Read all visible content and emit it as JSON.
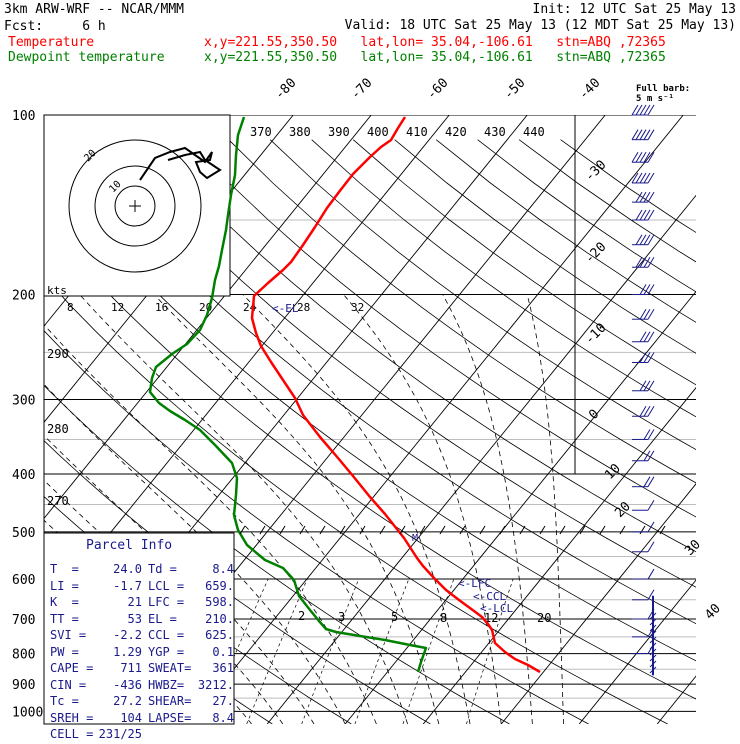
{
  "header": {
    "model": "3km ARW-WRF -- NCAR/MMM",
    "init": "Init: 12 UTC Sat 25 May 13",
    "fcst_label": "Fcst:",
    "fcst_value": "6 h",
    "valid": "Valid: 18 UTC Sat 25 May 13 (12 MDT Sat 25 May 13)",
    "temp_label": "Temperature",
    "dew_label": "Dewpoint temperature",
    "xy": "x,y=221.55,350.50",
    "latlon": "lat,lon= 35.04,-106.61",
    "stn": "stn=ABQ ,72365"
  },
  "colors": {
    "temperature": "#ff0000",
    "dewpoint": "#008000",
    "parcel_text": "#1a1a8c",
    "moist_adiabat": "#000000",
    "grid": "#000000"
  },
  "barb_legend": {
    "line1": "Full barb:",
    "line2": "5 m s⁻¹"
  },
  "hodograph": {
    "units": "kts",
    "ring_label": "20",
    "ring_label2": "10"
  },
  "parcel_info": {
    "title": "Parcel Info",
    "rows": [
      [
        "T  =",
        "24.0",
        "Td =",
        "8.4"
      ],
      [
        "LI =",
        "-1.7",
        "LCL =",
        "659."
      ],
      [
        "K  =",
        "21",
        "LFC =",
        "598."
      ],
      [
        "TT =",
        "53",
        "EL =",
        "210."
      ],
      [
        "SVI =",
        "-2.2",
        "CCL =",
        "625."
      ],
      [
        "PW =",
        "1.29",
        "YGP =",
        "0.1"
      ],
      [
        "CAPE =",
        "711",
        "SWEAT=",
        "361"
      ],
      [
        "CIN =",
        "-436",
        "HWBZ=",
        "3212."
      ],
      [
        "Tc =",
        "27.2",
        "SHEAR=",
        "27."
      ],
      [
        "SREH =",
        "104",
        "LAPSE=",
        "8.4"
      ],
      [
        "CELL =",
        "231/25",
        "",
        ""
      ]
    ]
  },
  "levels_text": {
    "el": "<-EL",
    "lfc": "<-LFC",
    "ccl": "<-CCL",
    "lcl": "<-LCL",
    "m": "M"
  },
  "chart_data": {
    "type": "line",
    "skewt": true,
    "y_axis": {
      "label": "",
      "scale": "log-pressure",
      "ticks": [
        100,
        200,
        300,
        400,
        500,
        600,
        700,
        800,
        900,
        1000
      ],
      "units": "hPa"
    },
    "isotherm_labels": [
      -80,
      -70,
      -60,
      -50,
      -40,
      -30,
      -20,
      -10,
      0,
      10,
      20,
      30,
      40
    ],
    "theta_labels": [
      370,
      380,
      390,
      400,
      410,
      420,
      430,
      440
    ],
    "hodo_speed_labels": [
      8,
      12,
      16,
      20,
      24,
      28,
      32
    ],
    "mixing_ratio_labels": [
      2,
      3,
      5,
      8,
      12,
      20
    ],
    "theta_left_labels": [
      290,
      280,
      270
    ],
    "series": [
      {
        "name": "Temperature",
        "color": "#ff0000",
        "points": [
          [
            840,
            30.0
          ],
          [
            815,
            27.0
          ],
          [
            790,
            23.0
          ],
          [
            760,
            21.5
          ],
          [
            730,
            22.0
          ],
          [
            700,
            19.0
          ],
          [
            680,
            17.0
          ],
          [
            650,
            14.0
          ],
          [
            620,
            11.0
          ],
          [
            600,
            8.0
          ],
          [
            550,
            3.0
          ],
          [
            500,
            -3.0
          ],
          [
            450,
            -9.0
          ],
          [
            400,
            -15.0
          ],
          [
            350,
            -23.0
          ],
          [
            300,
            -31.0
          ],
          [
            260,
            -39.0
          ],
          [
            230,
            -46.0
          ],
          [
            210,
            -52.0
          ],
          [
            200,
            -53.0
          ],
          [
            185,
            -52.0
          ],
          [
            170,
            -51.0
          ],
          [
            155,
            -51.0
          ],
          [
            140,
            -51.0
          ],
          [
            125,
            -53.0
          ],
          [
            110,
            -56.0
          ],
          [
            100,
            -59.0
          ]
        ]
      },
      {
        "name": "Dewpoint temperature",
        "color": "#008000",
        "points": [
          [
            840,
            12.0
          ],
          [
            815,
            11.0
          ],
          [
            800,
            11.0
          ],
          [
            760,
            -4.0
          ],
          [
            730,
            -9.0
          ],
          [
            700,
            -10.0
          ],
          [
            660,
            -13.0
          ],
          [
            630,
            -13.0
          ],
          [
            600,
            -15.0
          ],
          [
            560,
            -18.0
          ],
          [
            500,
            -23.0
          ],
          [
            460,
            -24.0
          ],
          [
            430,
            -23.0
          ],
          [
            400,
            -25.0
          ],
          [
            370,
            -29.0
          ],
          [
            340,
            -33.0
          ],
          [
            320,
            -38.0
          ],
          [
            300,
            -44.0
          ],
          [
            290,
            -48.0
          ],
          [
            275,
            -47.0
          ],
          [
            255,
            -42.0
          ],
          [
            230,
            -42.0
          ],
          [
            210,
            -43.0
          ],
          [
            190,
            -46.0
          ],
          [
            160,
            -54.0
          ],
          [
            140,
            -62.0
          ],
          [
            120,
            -71.0
          ],
          [
            105,
            -76.0
          ],
          [
            100,
            -77.0
          ]
        ]
      }
    ],
    "wind_barbs": [
      [
        100,
        60
      ],
      [
        110,
        60
      ],
      [
        120,
        55
      ],
      [
        130,
        55
      ],
      [
        140,
        50
      ],
      [
        150,
        50
      ],
      [
        165,
        45
      ],
      [
        180,
        45
      ],
      [
        200,
        40
      ],
      [
        220,
        40
      ],
      [
        240,
        35
      ],
      [
        260,
        35
      ],
      [
        290,
        30
      ],
      [
        320,
        30
      ],
      [
        350,
        25
      ],
      [
        380,
        20
      ],
      [
        420,
        20
      ],
      [
        460,
        15
      ],
      [
        500,
        15
      ],
      [
        540,
        15
      ],
      [
        600,
        10
      ],
      [
        650,
        10
      ],
      [
        700,
        10
      ],
      [
        750,
        5
      ],
      [
        800,
        5
      ]
    ]
  }
}
